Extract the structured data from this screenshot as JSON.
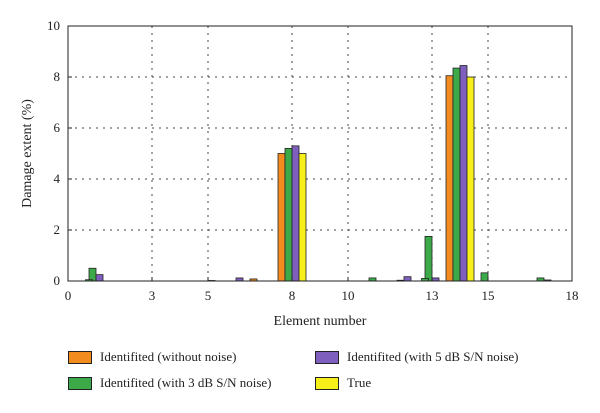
{
  "chart_data": {
    "type": "bar",
    "xlabel": "Element number",
    "ylabel": "Damage extent (%)",
    "xlim": [
      0,
      18
    ],
    "ylim": [
      0,
      10
    ],
    "x_ticks": [
      0,
      3,
      5,
      8,
      10,
      13,
      15,
      18
    ],
    "y_ticks": [
      0,
      2,
      4,
      6,
      8,
      10
    ],
    "grid": true,
    "legend_position": "bottom",
    "categories": [
      1,
      5,
      6,
      7,
      8,
      10,
      11,
      12,
      13,
      14,
      15,
      17
    ],
    "series": [
      {
        "name": "Identifited (without noise)",
        "color": "#f28c1e",
        "values": [
          0,
          0,
          0,
          0.08,
          5.0,
          0,
          0,
          0,
          0,
          8.05,
          0,
          0
        ]
      },
      {
        "name": "Identifited (with 3 dB S/N noise)",
        "color": "#3daa4a",
        "values": [
          0.5,
          0,
          0,
          0,
          5.2,
          0,
          0.12,
          0.03,
          1.75,
          8.35,
          0.32,
          0.12
        ]
      },
      {
        "name": "Identifited (with 5 dB S/N noise)",
        "color": "#7e5fbd",
        "values": [
          0.25,
          0.02,
          0.12,
          0,
          5.3,
          0,
          0,
          0.17,
          0.12,
          8.45,
          0,
          0.04
        ]
      },
      {
        "name": "True",
        "color": "#f7ef1a",
        "values": [
          0,
          0,
          0,
          0,
          5.0,
          0,
          0,
          0,
          0,
          8.0,
          0,
          0
        ]
      }
    ],
    "extra_bars": [
      {
        "series": 1,
        "x": 0.75,
        "value": 0.05
      },
      {
        "series": 1,
        "x": 12.75,
        "value": 0.1
      }
    ]
  }
}
